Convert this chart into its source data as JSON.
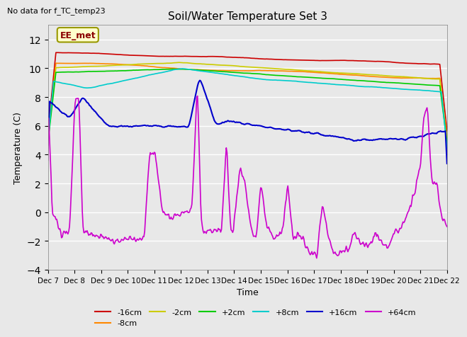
{
  "title": "Soil/Water Temperature Set 3",
  "no_data_text": "No data for f_TC_temp23",
  "annotation_text": "EE_met",
  "xlabel": "Time",
  "ylabel": "Temperature (C)",
  "ylim": [
    -4,
    13
  ],
  "yticks": [
    -4,
    -2,
    0,
    2,
    4,
    6,
    8,
    10,
    12
  ],
  "x_tick_labels": [
    "Dec 7",
    "Dec 8",
    "Dec 9",
    "Dec 10",
    "Dec 11",
    "Dec 12",
    "Dec 13",
    "Dec 14",
    "Dec 15",
    "Dec 16",
    "Dec 17",
    "Dec 18",
    "Dec 19",
    "Dec 20",
    "Dec 21",
    "Dec 22"
  ],
  "background_color": "#e8e8e8",
  "series_colors": {
    "-16cm": "#cc0000",
    "-8cm": "#ff8800",
    "-2cm": "#cccc00",
    "+2cm": "#00cc00",
    "+8cm": "#00cccc",
    "+16cm": "#0000cc",
    "+64cm": "#cc00cc"
  },
  "legend_labels": [
    "-16cm",
    "-8cm",
    "-2cm",
    "+2cm",
    "+8cm",
    "+16cm",
    "+64cm"
  ],
  "figsize": [
    6.4,
    4.8
  ],
  "dpi": 100
}
